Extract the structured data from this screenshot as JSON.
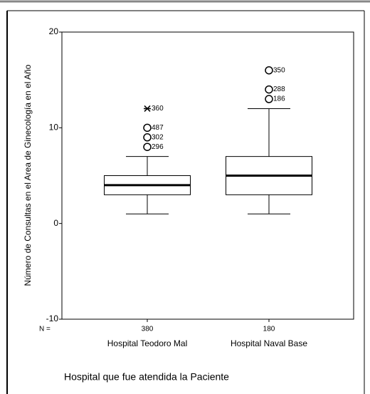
{
  "chart_data": {
    "type": "box",
    "y_label": "Número de Consultas en el Area de Ginecología en el Año",
    "x_label": "Hospital que fue atendida la Paciente",
    "n_label": "N =",
    "categories": [
      "Hospital Teodoro Mal",
      "Hospital Naval Base"
    ],
    "n": [
      380,
      180
    ],
    "boxes": [
      {
        "whisker_low": 1,
        "q1": 3,
        "median": 4,
        "q3": 5,
        "whisker_high": 7,
        "outliers": [
          {
            "value": 8,
            "label": "296",
            "marker": "circle"
          },
          {
            "value": 9,
            "label": "302",
            "marker": "circle"
          },
          {
            "value": 10,
            "label": "487",
            "marker": "circle"
          },
          {
            "value": 12,
            "label": "360",
            "marker": "star"
          }
        ]
      },
      {
        "whisker_low": 1,
        "q1": 3,
        "median": 5,
        "q3": 7,
        "whisker_high": 12,
        "outliers": [
          {
            "value": 13,
            "label": "186",
            "marker": "circle"
          },
          {
            "value": 14,
            "label": "288",
            "marker": "circle"
          },
          {
            "value": 16,
            "label": "350",
            "marker": "circle"
          }
        ]
      }
    ],
    "ylim": [
      -10,
      20
    ],
    "yticks": [
      -10,
      0,
      10,
      20
    ],
    "color": "#ffffff"
  }
}
